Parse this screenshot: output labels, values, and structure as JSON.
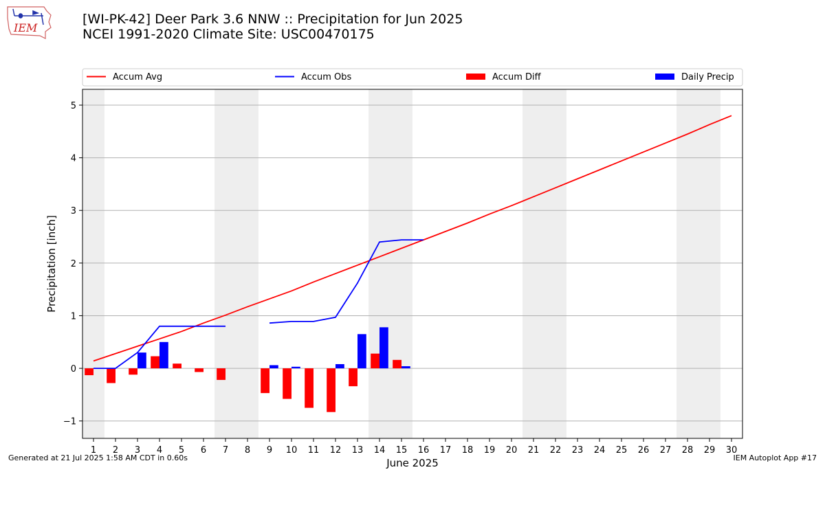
{
  "header": {
    "title_line1": "[WI-PK-42] Deer Park 3.6 NNW :: Precipitation for Jun 2025",
    "title_line2": "NCEI 1991-2020 Climate Site: USC00470175"
  },
  "logo": {
    "text": "IEM",
    "icon": "iem-iowa-logo"
  },
  "footer": {
    "left": "Generated at 21 Jul 2025 1:58 AM CDT in 0.60s",
    "right": "IEM Autoplot App #17"
  },
  "colors": {
    "accum_avg": "#ff0000",
    "accum_obs": "#0000ff",
    "accum_diff": "#ff0000",
    "daily_precip": "#0000ff",
    "weekend_band": "#eeeeee",
    "grid": "#b0b0b0"
  },
  "chart_data": {
    "type": "bar",
    "xlabel": "June 2025",
    "ylabel": "Precipitation [inch]",
    "xlim": [
      0.5,
      30.5
    ],
    "ylim": [
      -1.33,
      5.3
    ],
    "yticks": [
      -1,
      0,
      1,
      2,
      3,
      4,
      5
    ],
    "ytick_labels": [
      "−1",
      "0",
      "1",
      "2",
      "3",
      "4",
      "5"
    ],
    "categories": [
      1,
      2,
      3,
      4,
      5,
      6,
      7,
      8,
      9,
      10,
      11,
      12,
      13,
      14,
      15,
      16,
      17,
      18,
      19,
      20,
      21,
      22,
      23,
      24,
      25,
      26,
      27,
      28,
      29,
      30
    ],
    "weekend_days": [
      1,
      7,
      8,
      14,
      15,
      21,
      22,
      28,
      29
    ],
    "grid": true,
    "legend_placement": "top",
    "legend": [
      "Accum Avg",
      "Accum Obs",
      "Accum Diff",
      "Daily Precip"
    ],
    "series": [
      {
        "name": "Accum Avg",
        "kind": "line",
        "values": [
          0.14,
          0.28,
          0.42,
          0.56,
          0.7,
          0.86,
          1.01,
          1.17,
          1.32,
          1.47,
          1.64,
          1.8,
          1.96,
          2.12,
          2.28,
          2.44,
          2.6,
          2.76,
          2.93,
          3.09,
          3.26,
          3.43,
          3.6,
          3.77,
          3.94,
          4.11,
          4.28,
          4.45,
          4.63,
          4.8
        ]
      },
      {
        "name": "Accum Obs",
        "kind": "line",
        "values": [
          0.0,
          0.0,
          0.3,
          0.8,
          0.8,
          0.8,
          0.8,
          null,
          0.86,
          0.89,
          0.89,
          0.97,
          1.62,
          2.4,
          2.44,
          2.44,
          null,
          null,
          null,
          null,
          null,
          null,
          null,
          null,
          null,
          null,
          null,
          null,
          null,
          null
        ]
      },
      {
        "name": "Accum Diff",
        "kind": "bar",
        "values": [
          -0.13,
          -0.28,
          -0.12,
          0.23,
          0.09,
          -0.07,
          -0.22,
          null,
          -0.47,
          -0.58,
          -0.75,
          -0.83,
          -0.34,
          0.28,
          0.16,
          null,
          null,
          null,
          null,
          null,
          null,
          null,
          null,
          null,
          null,
          null,
          null,
          null,
          null,
          null
        ]
      },
      {
        "name": "Daily Precip",
        "kind": "bar",
        "values": [
          0.0,
          0.0,
          0.3,
          0.5,
          0.0,
          0.0,
          0.0,
          null,
          0.06,
          0.03,
          0.0,
          0.08,
          0.65,
          0.78,
          0.04,
          null,
          null,
          null,
          null,
          null,
          null,
          null,
          null,
          null,
          null,
          null,
          null,
          null,
          null,
          null
        ]
      }
    ]
  }
}
